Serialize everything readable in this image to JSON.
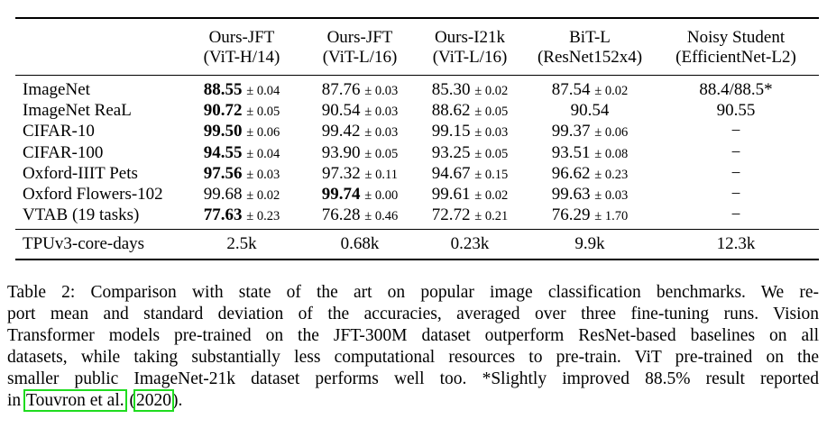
{
  "table": {
    "columns": [
      {
        "line1": "Ours-JFT",
        "line2": "(ViT-H/14)"
      },
      {
        "line1": "Ours-JFT",
        "line2": "(ViT-L/16)"
      },
      {
        "line1": "Ours-I21k",
        "line2": "(ViT-L/16)"
      },
      {
        "line1": "BiT-L",
        "line2": "(ResNet152x4)"
      },
      {
        "line1": "Noisy Student",
        "line2": "(EfficientNet-L2)"
      }
    ],
    "rows": [
      {
        "label": "ImageNet",
        "cells": [
          {
            "v": "88.55",
            "pm": "± 0.04",
            "bold": true
          },
          {
            "v": "87.76",
            "pm": "± 0.03"
          },
          {
            "v": "85.30",
            "pm": "± 0.02"
          },
          {
            "v": "87.54",
            "pm": "± 0.02"
          },
          {
            "v": "88.4/88.5*"
          }
        ]
      },
      {
        "label": "ImageNet ReaL",
        "cells": [
          {
            "v": "90.72",
            "pm": "± 0.05",
            "bold": true
          },
          {
            "v": "90.54",
            "pm": "± 0.03"
          },
          {
            "v": "88.62",
            "pm": "± 0.05"
          },
          {
            "v": "90.54"
          },
          {
            "v": "90.55"
          }
        ]
      },
      {
        "label": "CIFAR-10",
        "cells": [
          {
            "v": "99.50",
            "pm": "± 0.06",
            "bold": true
          },
          {
            "v": "99.42",
            "pm": "± 0.03"
          },
          {
            "v": "99.15",
            "pm": "± 0.03"
          },
          {
            "v": "99.37",
            "pm": "± 0.06"
          },
          {
            "v": "−"
          }
        ]
      },
      {
        "label": "CIFAR-100",
        "cells": [
          {
            "v": "94.55",
            "pm": "± 0.04",
            "bold": true
          },
          {
            "v": "93.90",
            "pm": "± 0.05"
          },
          {
            "v": "93.25",
            "pm": "± 0.05"
          },
          {
            "v": "93.51",
            "pm": "± 0.08"
          },
          {
            "v": "−"
          }
        ]
      },
      {
        "label": "Oxford-IIIT Pets",
        "cells": [
          {
            "v": "97.56",
            "pm": "± 0.03",
            "bold": true
          },
          {
            "v": "97.32",
            "pm": "± 0.11"
          },
          {
            "v": "94.67",
            "pm": "± 0.15"
          },
          {
            "v": "96.62",
            "pm": "± 0.23"
          },
          {
            "v": "−"
          }
        ]
      },
      {
        "label": "Oxford Flowers-102",
        "cells": [
          {
            "v": "99.68",
            "pm": "± 0.02"
          },
          {
            "v": "99.74",
            "pm": "± 0.00",
            "bold": true
          },
          {
            "v": "99.61",
            "pm": "± 0.02"
          },
          {
            "v": "99.63",
            "pm": "± 0.03"
          },
          {
            "v": "−"
          }
        ]
      },
      {
        "label": "VTAB (19 tasks)",
        "cells": [
          {
            "v": "77.63",
            "pm": "± 0.23",
            "bold": true
          },
          {
            "v": "76.28",
            "pm": "± 0.46"
          },
          {
            "v": "72.72",
            "pm": "± 0.21"
          },
          {
            "v": "76.29",
            "pm": "± 1.70"
          },
          {
            "v": "−"
          }
        ]
      }
    ],
    "cost_row": {
      "label": "TPUv3-core-days",
      "cells": [
        "2.5k",
        "0.68k",
        "0.23k",
        "9.9k",
        "12.3k"
      ]
    }
  },
  "caption": {
    "l1": "Table 2:   Comparison with state of the art on popular image classification benchmarks.  We re-",
    "l2": "port mean and standard deviation of the accuracies, averaged over three fine-tuning runs.  Vision",
    "l3": "Transformer models pre-trained on the JFT-300M dataset outperform ResNet-based baselines on all",
    "l4": "datasets, while taking substantially less computational resources to pre-train. ViT pre-trained on the",
    "l5": "smaller public ImageNet-21k dataset performs well too. *Slightly improved 88.5% result reported",
    "l6_pre": "in ",
    "l6_cite": "Touvron et al.",
    "l6_mid": " (",
    "l6_year": "2020",
    "l6_post": ")."
  }
}
